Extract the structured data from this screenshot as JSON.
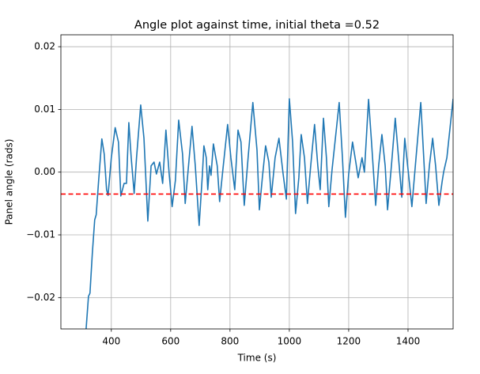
{
  "chart_data": {
    "type": "line",
    "title": "Angle plot against time, initial theta =0.52",
    "xlabel": "Time (s)",
    "ylabel": "Panel angle (rads)",
    "x": [
      315,
      323,
      328,
      336,
      344,
      349,
      357,
      368,
      376,
      384,
      389,
      400,
      413,
      424,
      432,
      443,
      451,
      459,
      467,
      477,
      485,
      499,
      510,
      523,
      534,
      544,
      552,
      563,
      573,
      584,
      595,
      605,
      616,
      627,
      640,
      649,
      659,
      672,
      683,
      696,
      707,
      712,
      720,
      725,
      731,
      736,
      744,
      757,
      765,
      776,
      792,
      803,
      816,
      827,
      837,
      848,
      861,
      877,
      891,
      899,
      909,
      920,
      931,
      939,
      952,
      965,
      979,
      990,
      1000,
      1011,
      1021,
      1032,
      1040,
      1051,
      1061,
      1072,
      1085,
      1096,
      1104,
      1115,
      1125,
      1133,
      1144,
      1168,
      1179,
      1189,
      1200,
      1213,
      1224,
      1232,
      1245,
      1253,
      1267,
      1277,
      1291,
      1301,
      1312,
      1323,
      1331,
      1344,
      1357,
      1368,
      1379,
      1389,
      1403,
      1413,
      1427,
      1443,
      1453,
      1461,
      1472,
      1483,
      1493,
      1504,
      1515,
      1520,
      1531,
      1552
    ],
    "series": [
      {
        "name": "angle",
        "color": "#1f77b4",
        "values": [
          -0.025,
          -0.0198,
          -0.0193,
          -0.0129,
          -0.0076,
          -0.0068,
          -0.0015,
          0.0053,
          0.0029,
          -0.0028,
          -0.0037,
          0.0023,
          0.0071,
          0.0048,
          -0.0038,
          -0.0018,
          -0.0018,
          0.0079,
          0.0023,
          -0.0034,
          0.0023,
          0.0107,
          0.0054,
          -0.0078,
          0.001,
          0.0016,
          -0.0003,
          0.0016,
          -0.0018,
          0.0067,
          -0.0003,
          -0.0055,
          -0.0013,
          0.0083,
          0.0029,
          -0.005,
          0.0004,
          0.0073,
          0.001,
          -0.0085,
          -0.0003,
          0.0042,
          0.0023,
          -0.0028,
          0.001,
          -0.0005,
          0.0045,
          0.001,
          -0.0047,
          0.0004,
          0.0076,
          0.0023,
          -0.0028,
          0.0067,
          0.0048,
          -0.0053,
          0.0023,
          0.0111,
          0.0035,
          -0.006,
          -0.0009,
          0.0042,
          0.0016,
          -0.004,
          0.0023,
          0.0054,
          -0.0003,
          -0.0043,
          0.0117,
          0.0048,
          -0.0066,
          -0.0009,
          0.006,
          0.0023,
          -0.005,
          0.001,
          0.0076,
          0.001,
          -0.0028,
          0.0086,
          0.0023,
          -0.0055,
          0.0004,
          0.0111,
          0.0023,
          -0.0072,
          -0.0003,
          0.0048,
          0.0016,
          -0.0009,
          0.0023,
          0.0,
          0.0116,
          0.0048,
          -0.0053,
          0.001,
          0.006,
          0.001,
          -0.006,
          0.001,
          0.0086,
          0.0023,
          -0.004,
          0.0054,
          -0.0009,
          -0.0055,
          0.0023,
          0.0111,
          0.0023,
          -0.005,
          0.001,
          0.0054,
          0.001,
          -0.0053,
          -0.0015,
          0.0,
          0.0023,
          0.0117
        ]
      }
    ],
    "reference_line": {
      "value": -0.0035,
      "color": "#ff0000"
    },
    "xlim": [
      230,
      1552
    ],
    "ylim": [
      -0.025,
      0.0219
    ],
    "xticks": [
      400,
      600,
      800,
      1000,
      1200,
      1400
    ],
    "yticks": [
      {
        "value": -0.02,
        "label": "−0.02"
      },
      {
        "value": -0.01,
        "label": "−0.01"
      },
      {
        "value": 0,
        "label": "0.00"
      },
      0.01,
      0.02
    ],
    "grid": true
  }
}
